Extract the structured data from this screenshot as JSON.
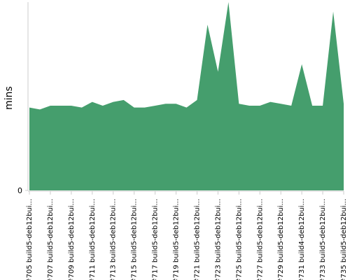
{
  "chart_data": {
    "type": "area",
    "y_label": "mins",
    "color": "#459e6d",
    "categories": [
      "#705 build5-deb12bui...",
      null,
      "#707 build5-deb12bui...",
      null,
      "#709 build5-deb12bui...",
      null,
      "#711 build5-deb12bui...",
      null,
      "#713 build5-deb12bui...",
      null,
      "#715 build5-deb12bui...",
      null,
      "#717 build5-deb12bui...",
      null,
      "#719 build5-deb12bui...",
      null,
      "#721 build5-deb12bui...",
      null,
      "#723 build5-deb12bui...",
      null,
      "#725 build5-deb12bui...",
      null,
      "#727 build5-deb12bui...",
      null,
      "#729 build5-deb12bui...",
      null,
      "#731 build4-deb12bui...",
      null,
      "#733 build5-deb12bui...",
      null,
      "#735 build5-deb12bui..."
    ],
    "values": [
      4.4,
      4.3,
      4.5,
      4.5,
      4.5,
      4.4,
      4.7,
      4.5,
      4.7,
      4.8,
      4.4,
      4.4,
      4.5,
      4.6,
      4.6,
      4.4,
      4.8,
      8.8,
      6.3,
      10.0,
      4.6,
      4.5,
      4.5,
      4.7,
      4.6,
      4.5,
      6.7,
      4.5,
      4.5,
      9.5,
      4.6
    ],
    "ylim": [
      0,
      10
    ],
    "yticks": [
      0
    ]
  }
}
